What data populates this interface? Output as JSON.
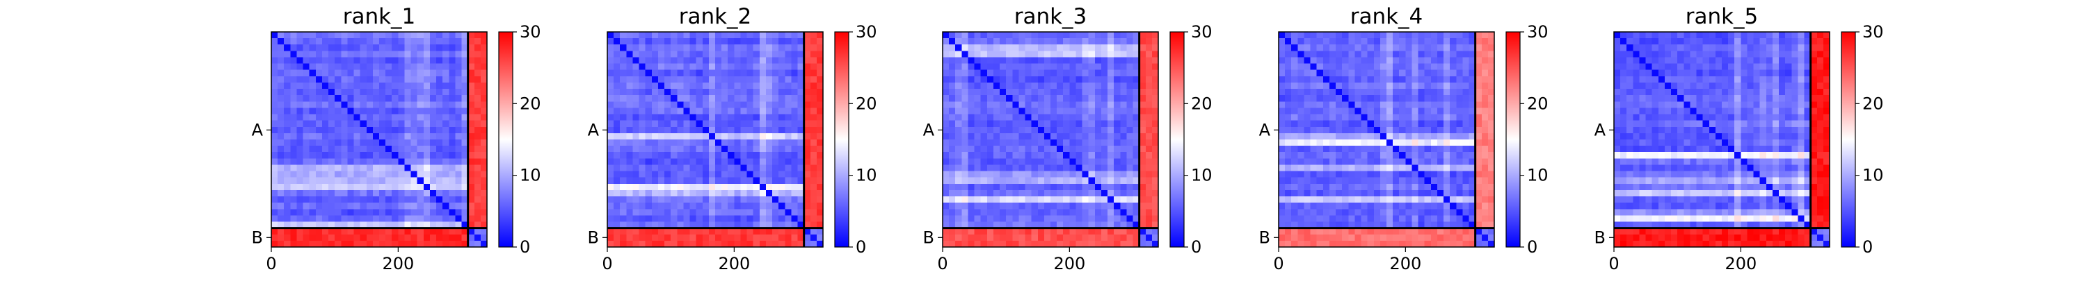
{
  "chart_data": {
    "type": "heatmap",
    "colormap": "bwr",
    "colorbar_range": [
      0,
      30
    ],
    "colorbar_ticks": [
      "0",
      "10",
      "20",
      "30"
    ],
    "x_ticks": [
      "0",
      "200"
    ],
    "y_ticks": [
      "A",
      "B"
    ],
    "chain_lengths": {
      "A": 310,
      "B": 30
    },
    "panels": [
      {
        "title": "rank_1",
        "pae_BA": 29,
        "pae_AB": 28
      },
      {
        "title": "rank_2",
        "pae_BA": 28,
        "pae_AB": 28
      },
      {
        "title": "rank_3",
        "pae_BA": 27,
        "pae_AB": 27
      },
      {
        "title": "rank_4",
        "pae_BA": 25,
        "pae_AB": 24
      },
      {
        "title": "rank_5",
        "pae_BA": 30,
        "pae_AB": 30
      }
    ],
    "colors": {
      "low": "#0000ff",
      "mid": "#ffffff",
      "high": "#ff0000"
    }
  }
}
